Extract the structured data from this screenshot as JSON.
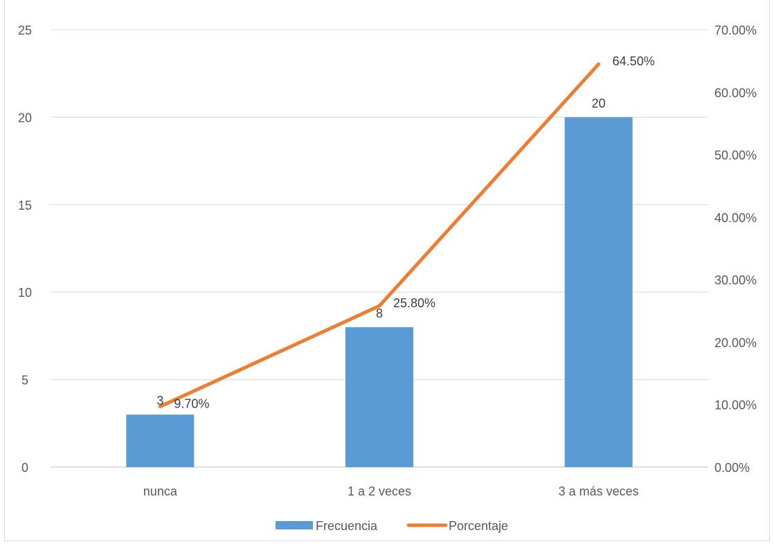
{
  "caption": "",
  "chart_data": {
    "type": "bar",
    "categories": [
      "nunca",
      "1 a 2 veces",
      "3 a más veces"
    ],
    "series": [
      {
        "name": "Frecuencia",
        "type": "bar",
        "axis": "left",
        "color": "#5b9bd5",
        "values": [
          3,
          8,
          20
        ],
        "labels": [
          "3",
          "8",
          "20"
        ]
      },
      {
        "name": "Porcentaje",
        "type": "line",
        "axis": "right",
        "color": "#ed7d31",
        "values": [
          9.7,
          25.8,
          64.5
        ],
        "labels": [
          "9.70%",
          "25.80%",
          "64.50%"
        ]
      }
    ],
    "y_left": {
      "min": 0,
      "max": 25,
      "ticks": [
        "0",
        "5",
        "10",
        "15",
        "20",
        "25"
      ]
    },
    "y_right": {
      "min": 0,
      "max": 70,
      "ticks": [
        "0.00%",
        "10.00%",
        "20.00%",
        "30.00%",
        "40.00%",
        "50.00%",
        "60.00%",
        "70.00%"
      ]
    },
    "grid": true,
    "legend": "bottom"
  }
}
